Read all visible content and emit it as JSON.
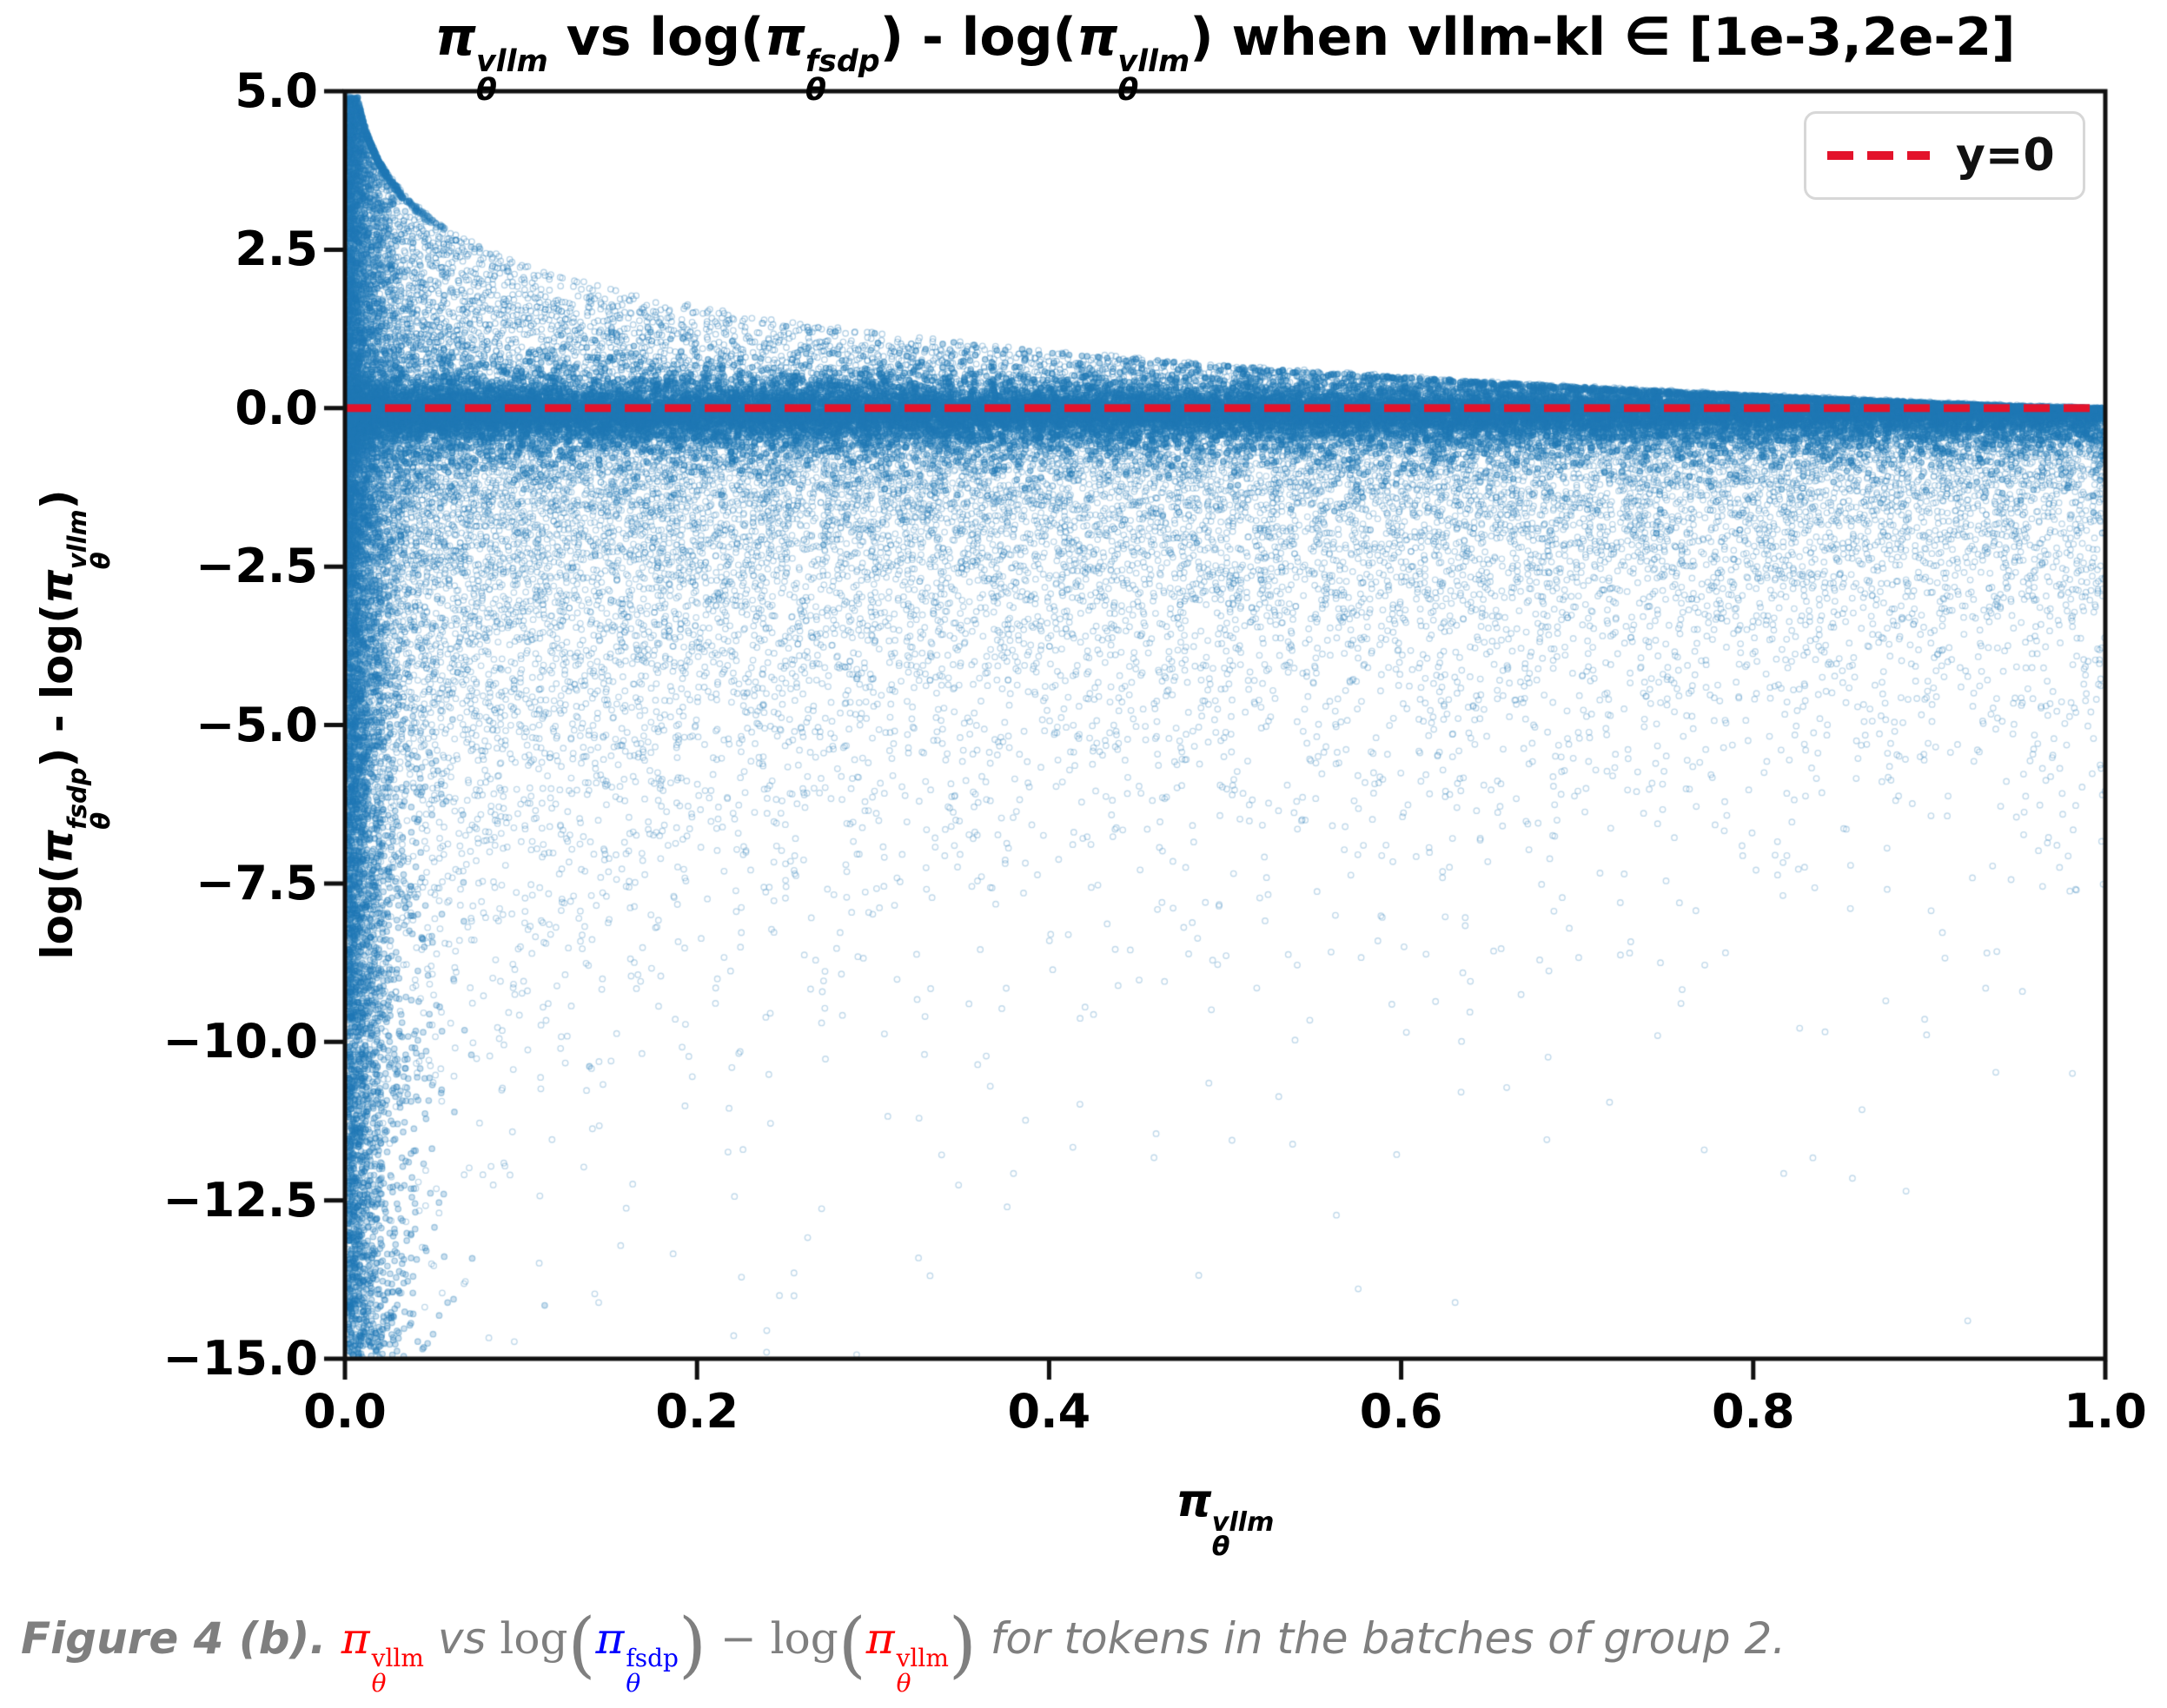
{
  "chart": {
    "title": {
      "pi": "π",
      "theta": "θ",
      "sup_vllm": "vllm",
      "sup_fsdp": "fsdp",
      "seg_vs": " vs log(",
      "seg_mid": ") - log(",
      "seg_close": ") when vllm-kl ∈ [1e-3,2e-2]"
    },
    "ylabel": {
      "seg_open": "log(",
      "pi": "π",
      "theta": "θ",
      "sup_fsdp": "fsdp",
      "seg_mid": ") - log(",
      "sup_vllm": "vllm",
      "seg_close": ")"
    },
    "xlabel": {
      "pi": "π",
      "theta": "θ",
      "sup": "vllm"
    },
    "legend": {
      "label": "y=0"
    },
    "colors": {
      "marker_blue": "#1f77b4",
      "dense_band_apparent": "#2f79b5",
      "refline_red": "#e3132b",
      "spine_black": "#111111",
      "legend_border": "#d7d7d7"
    }
  },
  "chart_data": {
    "type": "scatter",
    "title": "π_θ^vllm vs log(π_θ^fsdp) - log(π_θ^vllm) when vllm-kl ∈ [1e-3,2e-2]",
    "xlabel": "π_θ^vllm",
    "ylabel": "log(π_θ^fsdp) - log(π_θ^vllm)",
    "xlim": [
      0,
      1
    ],
    "ylim": [
      -15,
      5
    ],
    "xtickvalues": [
      0.0,
      0.2,
      0.4,
      0.6,
      0.8,
      1.0
    ],
    "xticklabels": [
      "0.0",
      "0.2",
      "0.4",
      "0.6",
      "0.8",
      "1.0"
    ],
    "ytickvalues": [
      5.0,
      2.5,
      0.0,
      -2.5,
      -5.0,
      -7.5,
      -10.0,
      -12.5,
      -15.0
    ],
    "yticklabels": [
      "5.0",
      "2.5",
      "0.0",
      "−2.5",
      "−5.0",
      "−7.5",
      "−10.0",
      "−12.5",
      "−15.0"
    ],
    "grid": false,
    "legend": {
      "position": "upper right",
      "entries": [
        {
          "label": "y=0",
          "type": "dashed-line",
          "color": "#e3132b"
        }
      ]
    },
    "reference_line": {
      "y": 0,
      "style": "dashed",
      "color": "#e3132b",
      "line_width": 9,
      "dash_pattern": [
        30,
        16
      ]
    },
    "marker": {
      "shape": "ring-circle",
      "radius": 3.2,
      "color": "#1f77b4"
    },
    "scatter_model": {
      "description": "Tens of thousands of token points. Dense solid band hugging y=0 across all x; upper fringe bounded by envelope y=-ln(x) (max ~5 at x→0); broad lower cloud fading from y≈-0.1 down to -15, denser at small x; very dense vertical column at x≈0 spanning +5 to -15.",
      "seed": 42,
      "envelope": "y_max = min(5.05, -ln(max(x, 0.0064)))",
      "components": [
        {
          "name": "dense-band-near-zero",
          "n": 26000,
          "x": "u^1.12",
          "y": "-0.07 + Laplace(b=0.20), clipped below envelope",
          "render": "fill+stroke"
        },
        {
          "name": "upper-fringe",
          "n": 8000,
          "x": "u^2.1",
          "y": "envelope(x) * u^1.75",
          "render": "stroke"
        },
        {
          "name": "lower-cloud",
          "n": 21000,
          "x": "mix: 50% u^2.4, 50% uniform",
          "y": "-0.12 - Exp(scale = 1.55 + 1.65·e^(-4.2x)), cut at -15.05",
          "render": "stroke"
        },
        {
          "name": "left-dense-column",
          "n": 6500,
          "x": "0.0015 + Exp(0.011), clipped to 0.14",
          "y": "4.9 - 19.9·u^1.3, clipped to [-14.99, envelope]",
          "render": "fill+stroke"
        }
      ]
    }
  },
  "caption": {
    "prefix": "Figure 4 (b)",
    "prefix_dot": ". ",
    "pi": "π",
    "theta": "θ",
    "sup_vllm": "vllm",
    "sup_fsdp": "fsdp",
    "vs": " vs ",
    "log": "log",
    "lparen": "(",
    "rparen": ")",
    "minus": " − ",
    "tail": " for tokens in the batches of group 2.",
    "colors": {
      "text": "#7f7f7f",
      "pi_vllm": "#ff0000",
      "pi_fsdp": "#0000ff"
    }
  }
}
